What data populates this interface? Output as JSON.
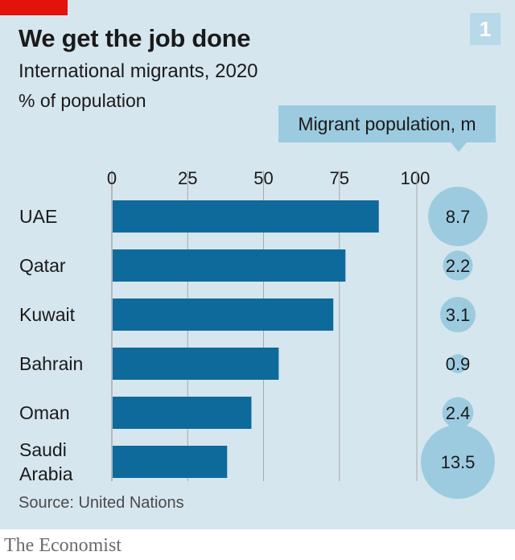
{
  "header": {
    "chart_number": "1",
    "title": "We get the job done",
    "subtitle": "International migrants, 2020",
    "unit": "% of population"
  },
  "callout": {
    "label": "Migrant population, m"
  },
  "footer": {
    "source": "Source: United Nations",
    "brand": "The Economist"
  },
  "colors": {
    "bar": "#0f6a9c",
    "bubble": "#9ccbe0",
    "grid": "#a9a9a9",
    "accent_red": "#e3120b"
  },
  "chart_data": {
    "type": "bar",
    "orientation": "horizontal",
    "title": "We get the job done",
    "subtitle": "International migrants, 2020",
    "xlabel": "% of population",
    "xlim": [
      0,
      100
    ],
    "ticks": [
      0,
      25,
      50,
      75,
      100
    ],
    "tick_labels": [
      "0",
      "25",
      "50",
      "75",
      "100"
    ],
    "categories": [
      {
        "lines": [
          "UAE"
        ]
      },
      {
        "lines": [
          "Qatar"
        ]
      },
      {
        "lines": [
          "Kuwait"
        ]
      },
      {
        "lines": [
          "Bahrain"
        ]
      },
      {
        "lines": [
          "Oman"
        ]
      },
      {
        "lines": [
          "Saudi",
          "Arabia"
        ]
      }
    ],
    "values": [
      88,
      77,
      73,
      55,
      46,
      38
    ],
    "bubble_series": {
      "name": "Migrant population, m",
      "values": [
        8.7,
        2.2,
        3.1,
        0.9,
        2.4,
        13.5
      ],
      "labels": [
        "8.7",
        "2.2",
        "3.1",
        "0.9",
        "2.4",
        "13.5"
      ]
    }
  }
}
